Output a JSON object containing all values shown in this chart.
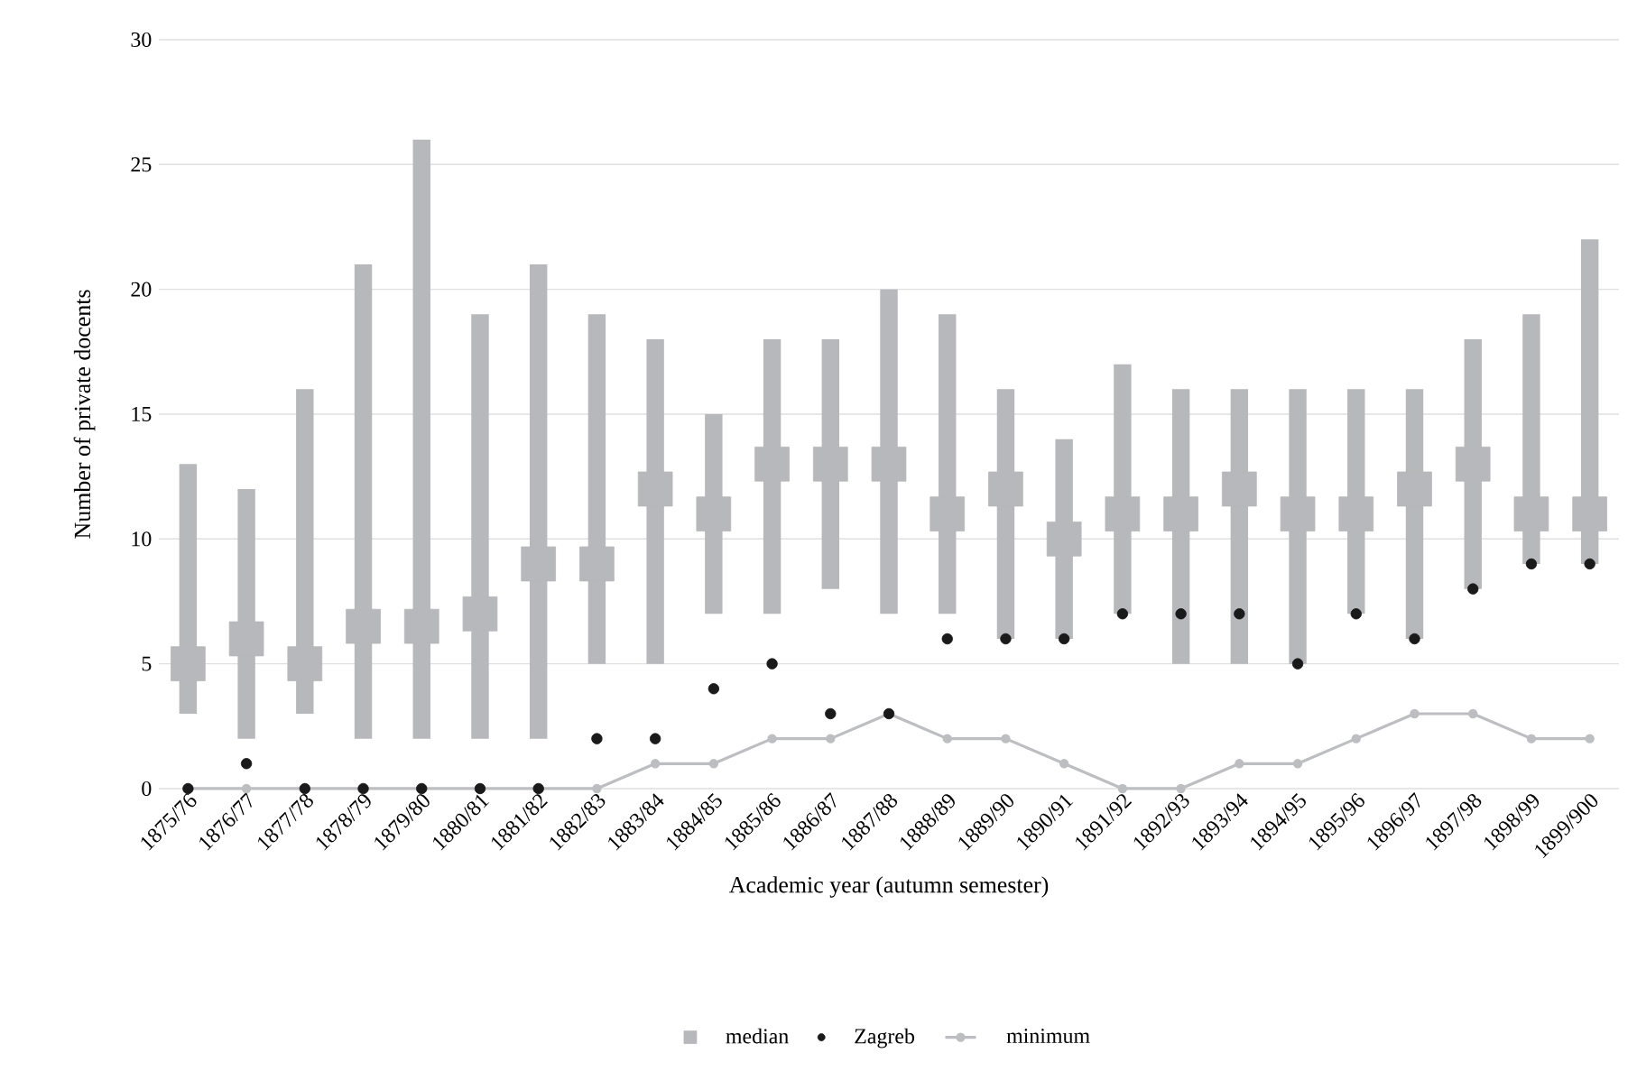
{
  "chart_data": {
    "type": "bar",
    "xlabel": "Academic year (autumn semester)",
    "ylabel": "Number of private docents",
    "categories": [
      "1875/76",
      "1876/77",
      "1877/78",
      "1878/79",
      "1879/80",
      "1880/81",
      "1881/82",
      "1882/83",
      "1883/84",
      "1884/85",
      "1885/86",
      "1886/87",
      "1887/88",
      "1888/89",
      "1889/90",
      "1890/91",
      "1891/92",
      "1892/93",
      "1893/94",
      "1894/95",
      "1895/96",
      "1896/97",
      "1897/98",
      "1898/99",
      "1899/900"
    ],
    "ylim": [
      0,
      30
    ],
    "yticks": [
      0,
      5,
      10,
      15,
      20,
      25,
      30
    ],
    "grid": "y",
    "legend": "bottom",
    "series": [
      {
        "type": "bar",
        "color": "#b7b8bb",
        "base": [
          3,
          2,
          3,
          2,
          2,
          2,
          2,
          5,
          5,
          7,
          7,
          8,
          7,
          7,
          6,
          6,
          7,
          5,
          5,
          5,
          7,
          6,
          8,
          9,
          9
        ],
        "values": [
          10,
          10,
          13,
          19,
          24,
          17,
          19,
          14,
          13,
          8,
          11,
          10,
          13,
          12,
          10,
          8,
          10,
          11,
          11,
          11,
          9,
          10,
          10,
          10,
          13
        ]
      },
      {
        "type": "scatter",
        "name": "median",
        "color": "#b7b8bb",
        "marker": "square",
        "values": [
          5,
          6,
          5,
          6.5,
          6.5,
          7,
          9,
          9,
          12,
          11,
          13,
          13,
          13,
          11,
          12,
          10,
          11,
          11,
          12,
          11,
          11,
          12,
          13,
          11,
          11
        ]
      },
      {
        "type": "scatter",
        "name": "Zagreb",
        "color": "#1a1a1a",
        "marker": "circle",
        "values": [
          0,
          1,
          0,
          0,
          0,
          0,
          0,
          2,
          2,
          4,
          5,
          3,
          3,
          6,
          6,
          6,
          7,
          7,
          7,
          5,
          7,
          6,
          8,
          9,
          9
        ]
      },
      {
        "type": "line",
        "name": "minimum",
        "color": "#bdbec1",
        "marker": "circle",
        "values": [
          0,
          0,
          0,
          0,
          0,
          0,
          0,
          0,
          1,
          1,
          2,
          2,
          3,
          2,
          2,
          1,
          0,
          0,
          1,
          1,
          2,
          3,
          3,
          2,
          2
        ]
      }
    ]
  }
}
